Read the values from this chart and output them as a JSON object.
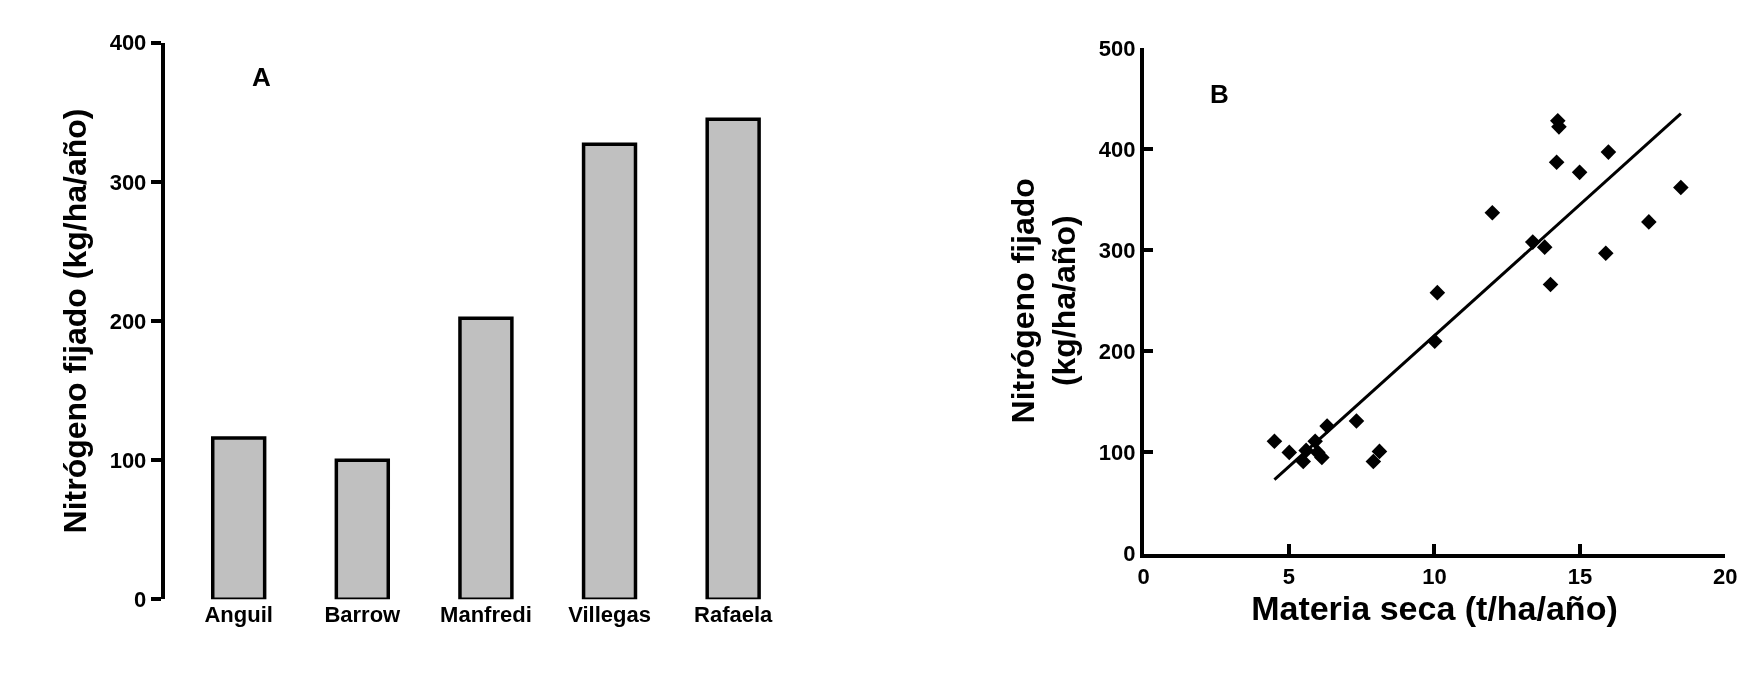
{
  "chart_data": [
    {
      "type": "bar",
      "ylabel": "Nitrógeno fijado (kg/ha/año)",
      "annotations": [
        "A"
      ],
      "categories": [
        "Anguil",
        "Barrow",
        "Manfredi",
        "Villegas",
        "Rafaela"
      ],
      "values": [
        116,
        100,
        202,
        327,
        345
      ],
      "color": "#c0c0c0",
      "ylim": [
        0,
        400
      ],
      "yticks": [
        0,
        100,
        200,
        300,
        400
      ]
    },
    {
      "type": "scatter",
      "xlabel": "Materia seca (t/ha/año)",
      "ylabel": "Nitrógeno fijado\n(kg/ha/año)",
      "annotations": [
        "B"
      ],
      "xlim": [
        0,
        20
      ],
      "xticks": [
        0,
        5,
        10,
        15,
        20
      ],
      "ylim": [
        0,
        500
      ],
      "yticks": [
        0,
        100,
        200,
        300,
        400,
        500
      ],
      "series": [
        {
          "color": "#000000",
          "marker": "diamond",
          "x": [
            14.24,
            14.28,
            15.98,
            14.2,
            14.99,
            18.47,
            11.99,
            17.37,
            13.38,
            13.79,
            15.89,
            13.99,
            10.1,
            10.01,
            4.5,
            5.01,
            5.59,
            5.49,
            5.9,
            5.99,
            6.13,
            6.31,
            7.32,
            8.11,
            7.9
          ],
          "values": [
            428,
            422,
            397,
            387,
            377,
            362,
            337,
            328,
            308,
            303,
            297,
            266,
            258,
            210,
            111,
            100,
            102,
            91,
            111,
            100,
            95,
            126,
            131,
            101,
            91
          ]
        },
        {
          "type": "line",
          "marker": "none",
          "color": "#000000",
          "x": [
            4.5,
            18.47
          ],
          "values": [
            73,
            435
          ]
        }
      ]
    }
  ]
}
